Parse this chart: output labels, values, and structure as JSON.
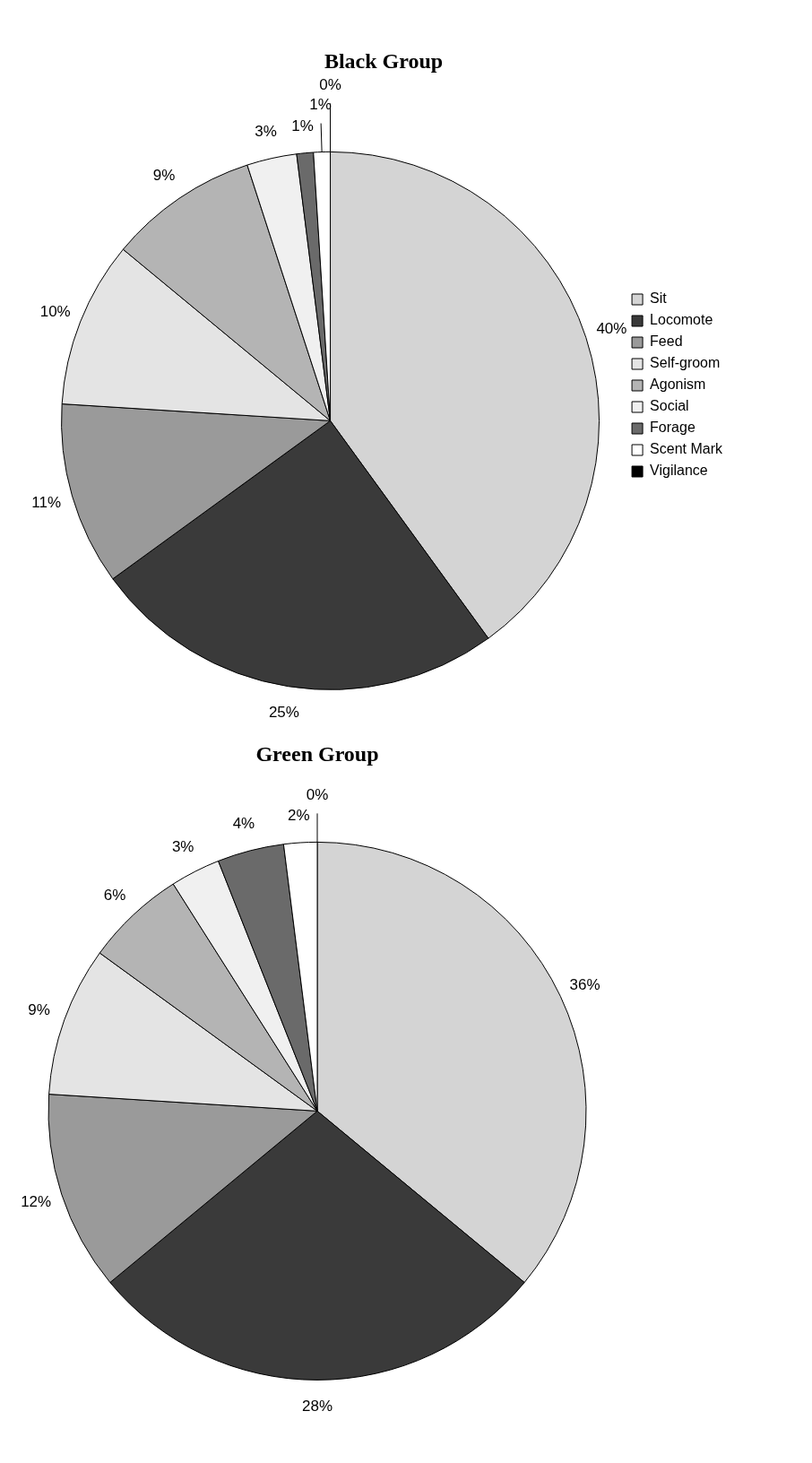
{
  "chart_data": [
    {
      "type": "pie",
      "title": "Black Group",
      "legend": "right",
      "categories": [
        "Sit",
        "Locomote",
        "Feed",
        "Self-groom",
        "Agonism",
        "Social",
        "Forage",
        "Scent Mark",
        "Vigilance"
      ],
      "values": [
        40,
        25,
        11,
        10,
        9,
        3,
        1,
        1,
        0
      ],
      "value_labels": [
        "40%",
        "25%",
        "11%",
        "10%",
        "9%",
        "3%",
        "1%",
        "1%",
        "0%"
      ],
      "colors": [
        "#d4d4d4",
        "#3a3a3a",
        "#9a9a9a",
        "#e4e4e4",
        "#b4b4b4",
        "#f0f0f0",
        "#6a6a6a",
        "#ffffff",
        "#000000"
      ]
    },
    {
      "type": "pie",
      "title": "Green Group",
      "legend": false,
      "categories": [
        null,
        null,
        null,
        null,
        null,
        null,
        null,
        null,
        null
      ],
      "values": [
        36,
        28,
        12,
        9,
        6,
        3,
        4,
        2,
        0
      ],
      "value_labels": [
        "36%",
        "28%",
        "12%",
        "9%",
        "6%",
        "3%",
        "4%",
        "2%",
        "0%"
      ],
      "colors": [
        "#d4d4d4",
        "#3a3a3a",
        "#9a9a9a",
        "#e4e4e4",
        "#b4b4b4",
        "#f0f0f0",
        "#6a6a6a",
        "#ffffff",
        "#000000"
      ]
    }
  ]
}
